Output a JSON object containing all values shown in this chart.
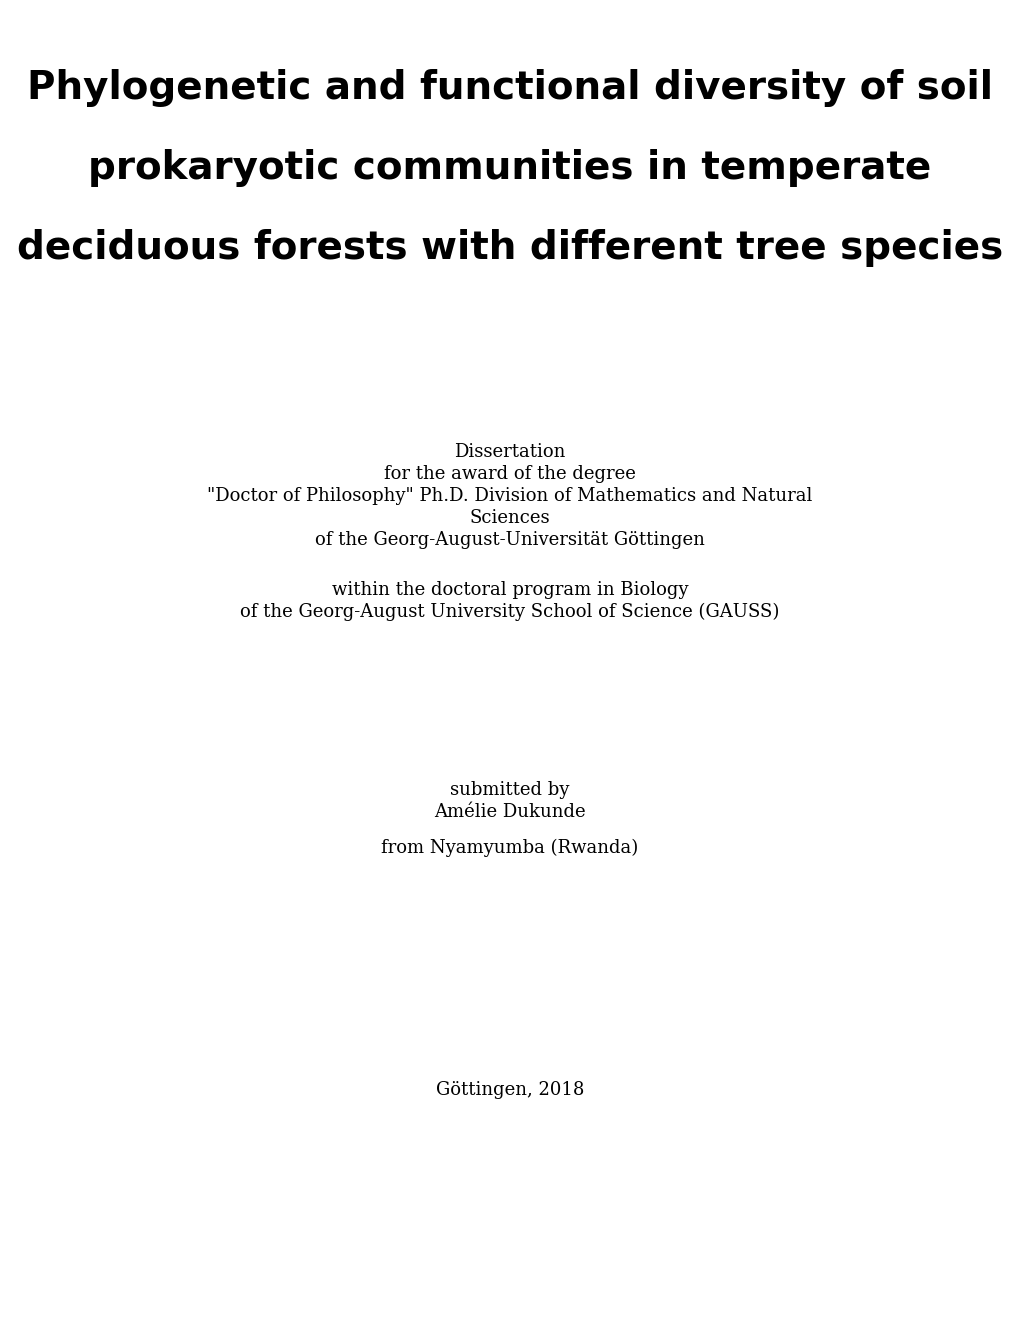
{
  "background_color": "#ffffff",
  "title_lines": [
    "Phylogenetic and functional diversity of soil",
    "prokaryotic communities in temperate",
    "deciduous forests with different tree species"
  ],
  "title_fontsize": 28,
  "title_font": "DejaVu Sans",
  "title_bold": true,
  "body_font": "DejaVu Serif",
  "body_fontsize": 13,
  "body_color": "#000000",
  "dissertation_block": [
    "Dissertation",
    "for the award of the degree",
    "\"Doctor of Philosophy\" Ph.D. Division of Mathematics and Natural",
    "Sciences",
    "of the Georg-August-Universität Göttingen"
  ],
  "program_block": [
    "within the doctoral program in Biology",
    "of the Georg-August University School of Science (GAUSS)"
  ],
  "submitted_block": [
    "submitted by",
    "Amélie Dukunde"
  ],
  "from_line": "from Nyamyumba (Rwanda)",
  "place_year": "Göttingen, 2018"
}
